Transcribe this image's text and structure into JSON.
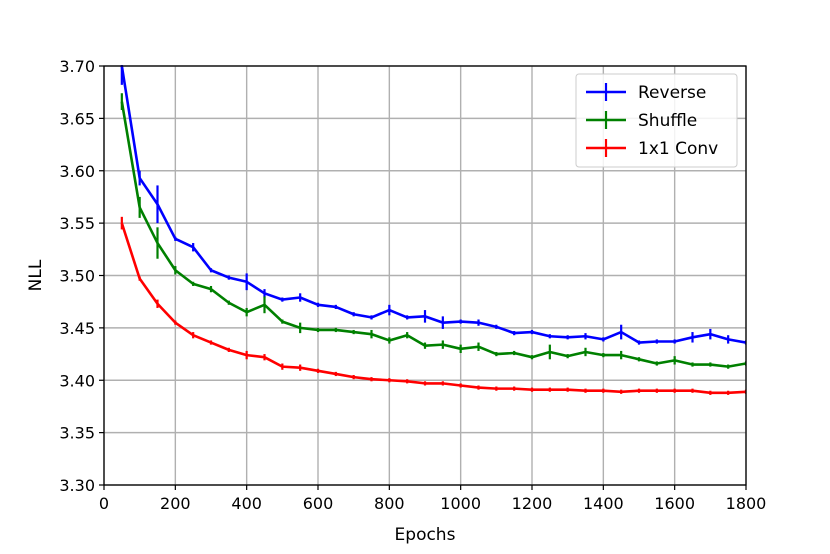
{
  "chart_data": {
    "type": "line",
    "title": "",
    "xlabel": "Epochs",
    "ylabel": "NLL",
    "xlim": [
      0,
      1800
    ],
    "ylim": [
      3.3,
      3.7
    ],
    "xticks": [
      0,
      200,
      400,
      600,
      800,
      1000,
      1200,
      1400,
      1600,
      1800
    ],
    "yticks": [
      3.3,
      3.35,
      3.4,
      3.45,
      3.5,
      3.55,
      3.6,
      3.65,
      3.7
    ],
    "xtick_labels": [
      "0",
      "200",
      "400",
      "600",
      "800",
      "1000",
      "1200",
      "1400",
      "1600",
      "1800"
    ],
    "ytick_labels": [
      "3.30",
      "3.35",
      "3.40",
      "3.45",
      "3.50",
      "3.55",
      "3.60",
      "3.65",
      "3.70"
    ],
    "grid": true,
    "legend_position": "top-right",
    "x": [
      50,
      100,
      150,
      200,
      250,
      300,
      350,
      400,
      450,
      500,
      550,
      600,
      650,
      700,
      750,
      800,
      850,
      900,
      950,
      1000,
      1050,
      1100,
      1150,
      1200,
      1250,
      1300,
      1350,
      1400,
      1450,
      1500,
      1550,
      1600,
      1650,
      1700,
      1750,
      1800
    ],
    "series": [
      {
        "name": "Reverse",
        "color": "#0000ff",
        "values": [
          3.7,
          3.593,
          3.568,
          3.535,
          3.527,
          3.505,
          3.498,
          3.494,
          3.483,
          3.477,
          3.479,
          3.472,
          3.47,
          3.463,
          3.46,
          3.467,
          3.46,
          3.461,
          3.455,
          3.456,
          3.455,
          3.451,
          3.445,
          3.446,
          3.442,
          3.441,
          3.442,
          3.439,
          3.446,
          3.436,
          3.437,
          3.437,
          3.441,
          3.444,
          3.439,
          3.436
        ],
        "errors": [
          0.018,
          0.007,
          0.018,
          0.002,
          0.004,
          0.002,
          0.002,
          0.008,
          0.004,
          0.002,
          0.004,
          0.002,
          0.002,
          0.002,
          0.002,
          0.005,
          0.002,
          0.006,
          0.006,
          0.002,
          0.003,
          0.002,
          0.002,
          0.002,
          0.002,
          0.002,
          0.003,
          0.002,
          0.007,
          0.002,
          0.002,
          0.002,
          0.005,
          0.005,
          0.004,
          0.002
        ]
      },
      {
        "name": "Shuffle",
        "color": "#008000",
        "values": [
          3.666,
          3.565,
          3.531,
          3.505,
          3.492,
          3.487,
          3.474,
          3.465,
          3.472,
          3.456,
          3.45,
          3.448,
          3.448,
          3.446,
          3.444,
          3.438,
          3.443,
          3.433,
          3.434,
          3.43,
          3.432,
          3.425,
          3.426,
          3.422,
          3.427,
          3.423,
          3.427,
          3.424,
          3.424,
          3.42,
          3.416,
          3.419,
          3.415,
          3.415,
          3.413,
          3.416
        ],
        "errors": [
          0.008,
          0.01,
          0.015,
          0.004,
          0.002,
          0.003,
          0.002,
          0.004,
          0.008,
          0.002,
          0.005,
          0.002,
          0.002,
          0.002,
          0.004,
          0.003,
          0.003,
          0.003,
          0.004,
          0.004,
          0.004,
          0.002,
          0.002,
          0.002,
          0.007,
          0.002,
          0.004,
          0.002,
          0.004,
          0.002,
          0.002,
          0.004,
          0.002,
          0.002,
          0.002,
          0.002
        ]
      },
      {
        "name": "1x1 Conv",
        "color": "#ff0000",
        "values": [
          3.55,
          3.497,
          3.473,
          3.455,
          3.443,
          3.436,
          3.429,
          3.424,
          3.422,
          3.413,
          3.412,
          3.409,
          3.406,
          3.403,
          3.401,
          3.4,
          3.399,
          3.397,
          3.397,
          3.395,
          3.393,
          3.392,
          3.392,
          3.391,
          3.391,
          3.391,
          3.39,
          3.39,
          3.389,
          3.39,
          3.39,
          3.39,
          3.39,
          3.388,
          3.388,
          3.389
        ],
        "errors": [
          0.006,
          0.002,
          0.004,
          0.002,
          0.003,
          0.002,
          0.002,
          0.004,
          0.003,
          0.003,
          0.003,
          0.002,
          0.002,
          0.002,
          0.002,
          0.002,
          0.002,
          0.002,
          0.002,
          0.002,
          0.002,
          0.002,
          0.002,
          0.002,
          0.002,
          0.002,
          0.002,
          0.002,
          0.002,
          0.002,
          0.002,
          0.002,
          0.002,
          0.002,
          0.002,
          0.002
        ]
      }
    ]
  }
}
